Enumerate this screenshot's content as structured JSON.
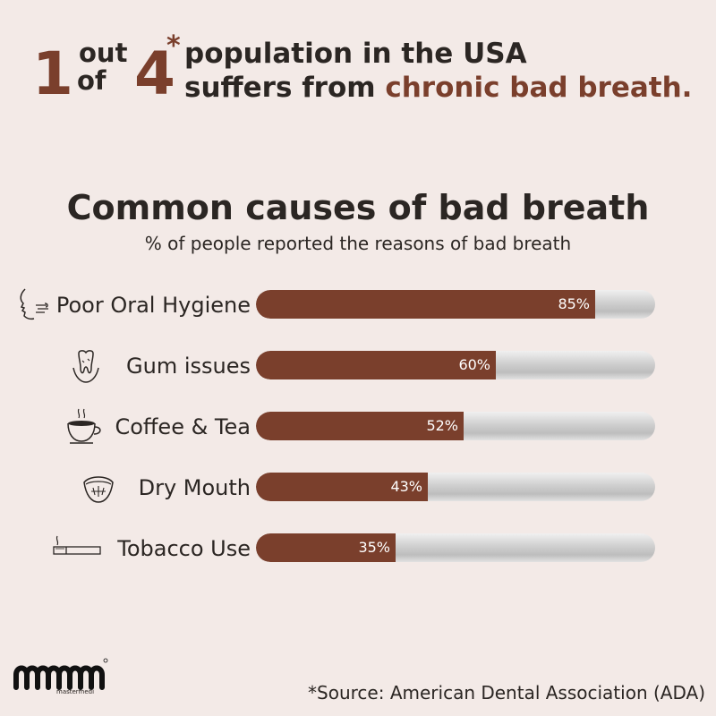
{
  "headline": {
    "big1": "1",
    "out": "out",
    "of": "of",
    "big4": "4",
    "star": "*",
    "line1": "population in the USA",
    "line2_prefix": "suffers from ",
    "line2_accent": "chronic bad breath."
  },
  "colors": {
    "accent": "#7a3f2c",
    "background": "#f3eae7",
    "text": "#2b2623",
    "track": "#c8c8c8"
  },
  "chart_data": {
    "type": "bar",
    "orientation": "horizontal",
    "title": "Common causes of bad breath",
    "subtitle": "% of people reported the reasons of bad breath",
    "categories": [
      "Poor Oral Hygiene",
      "Gum issues",
      "Coffee & Tea",
      "Dry Mouth",
      "Tobacco Use"
    ],
    "values": [
      85,
      60,
      52,
      43,
      35
    ],
    "value_labels": [
      "85%",
      "60%",
      "52%",
      "43%",
      "35%"
    ],
    "icons": [
      "breath-face-icon",
      "tooth-gum-icon",
      "coffee-cup-icon",
      "dry-mouth-icon",
      "cigarette-icon"
    ],
    "xlim": [
      0,
      100
    ],
    "grid": false,
    "legend": "none"
  },
  "footer": {
    "logo_text": "mastermedi",
    "source": "*Source: American Dental Association (ADA)"
  }
}
